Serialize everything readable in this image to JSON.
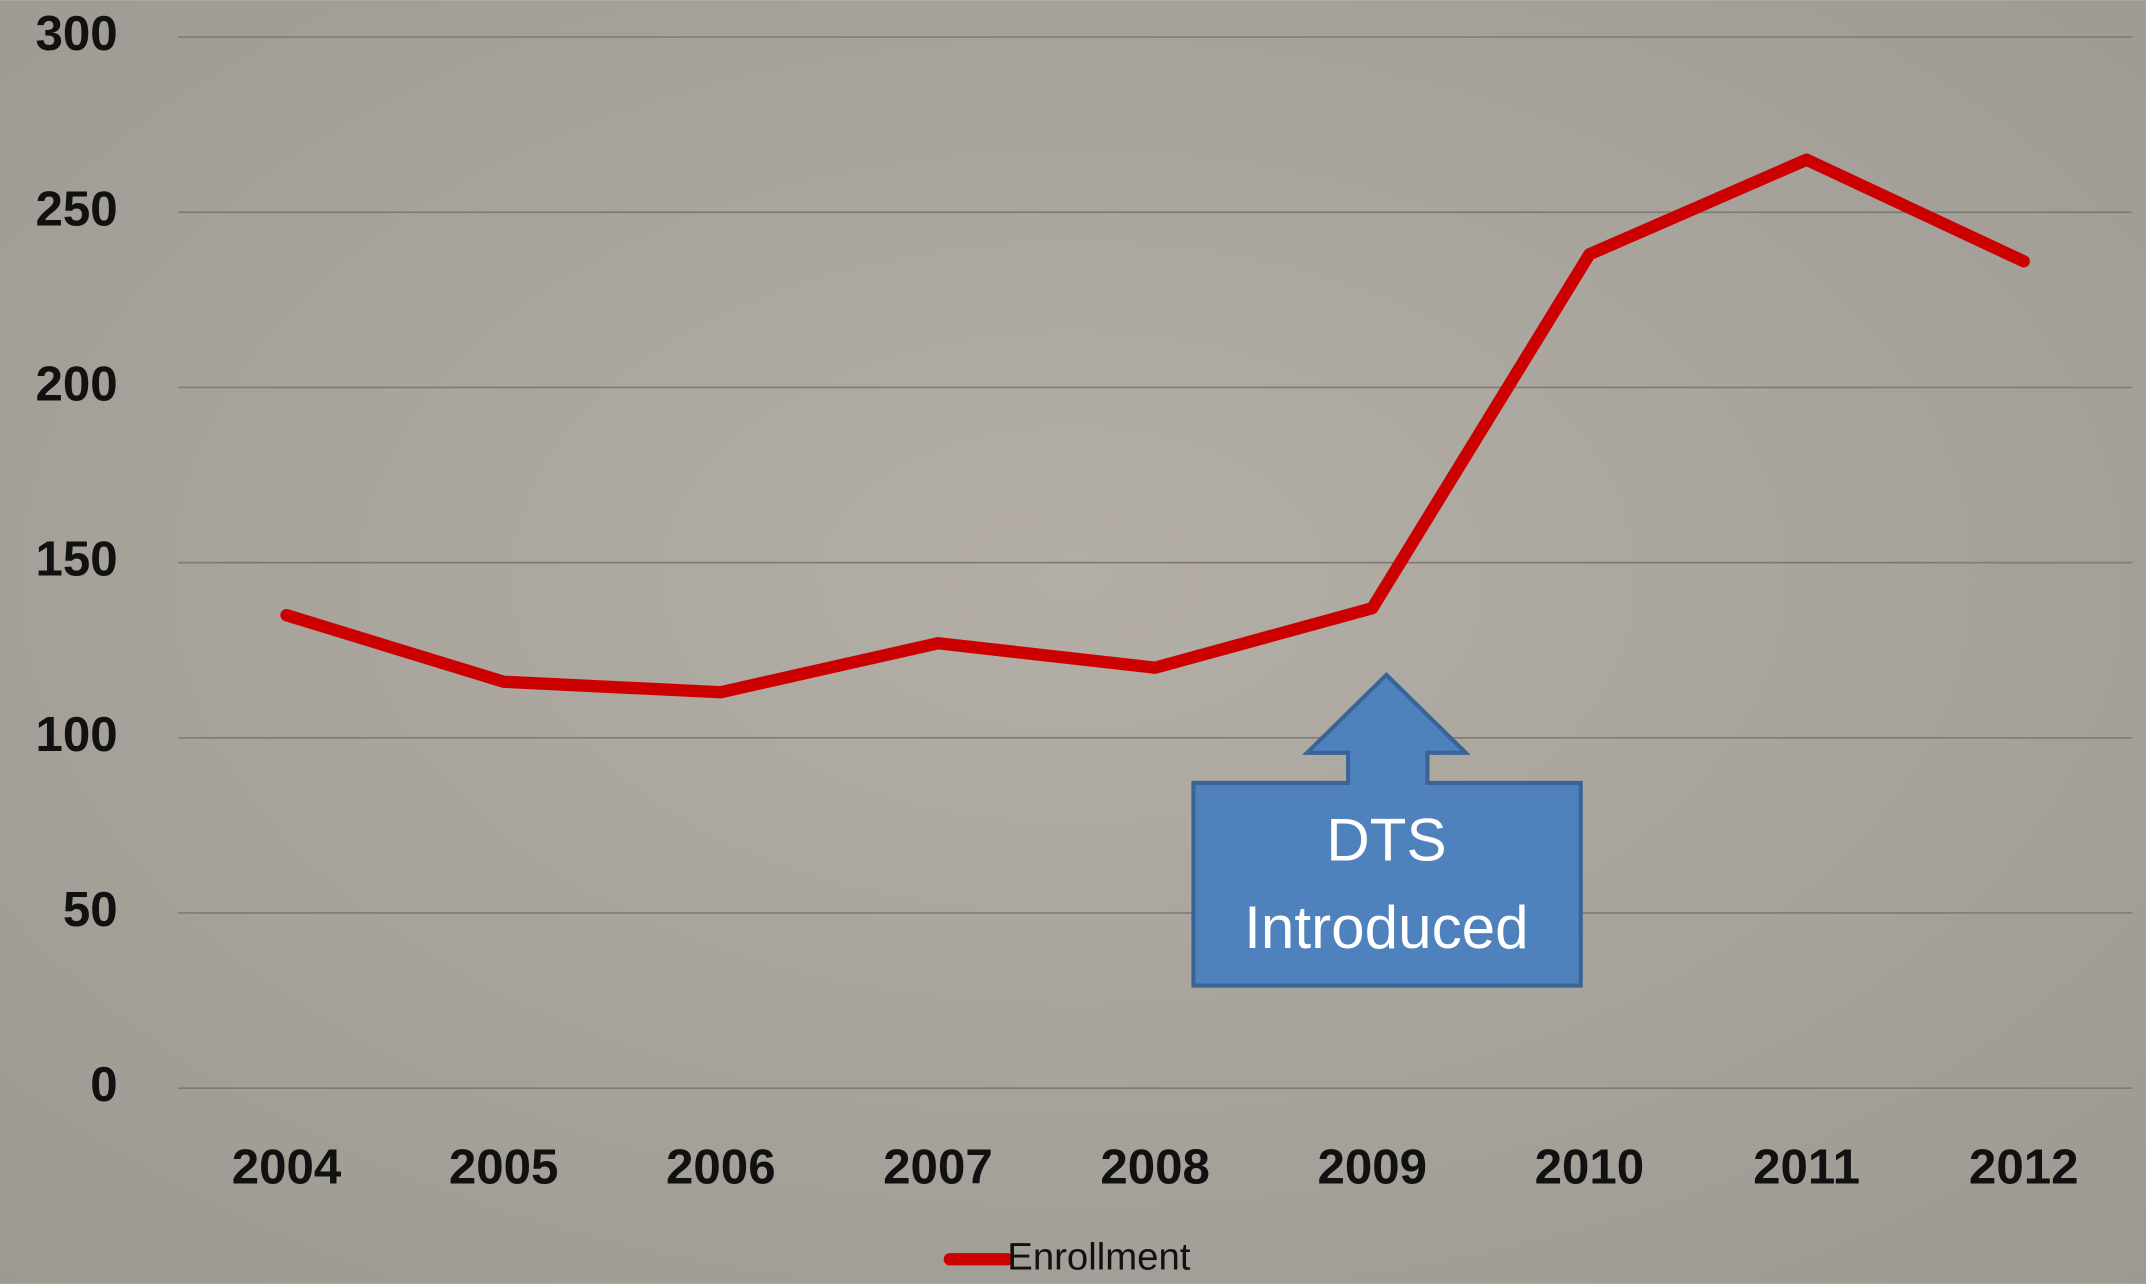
{
  "chart_data": {
    "type": "line",
    "categories": [
      "2004",
      "2005",
      "2006",
      "2007",
      "2008",
      "2009",
      "2010",
      "2011",
      "2012"
    ],
    "series": [
      {
        "name": "Enrollment",
        "color": "#cc0000",
        "values": [
          135,
          116,
          113,
          127,
          120,
          137,
          238,
          265,
          236
        ]
      }
    ],
    "ylim": [
      0,
      300
    ],
    "yticks": [
      0,
      50,
      100,
      150,
      200,
      250,
      300
    ],
    "grid": true,
    "legend": "bottom",
    "annotation": {
      "lines": [
        "DTS",
        "Introduced"
      ]
    }
  }
}
